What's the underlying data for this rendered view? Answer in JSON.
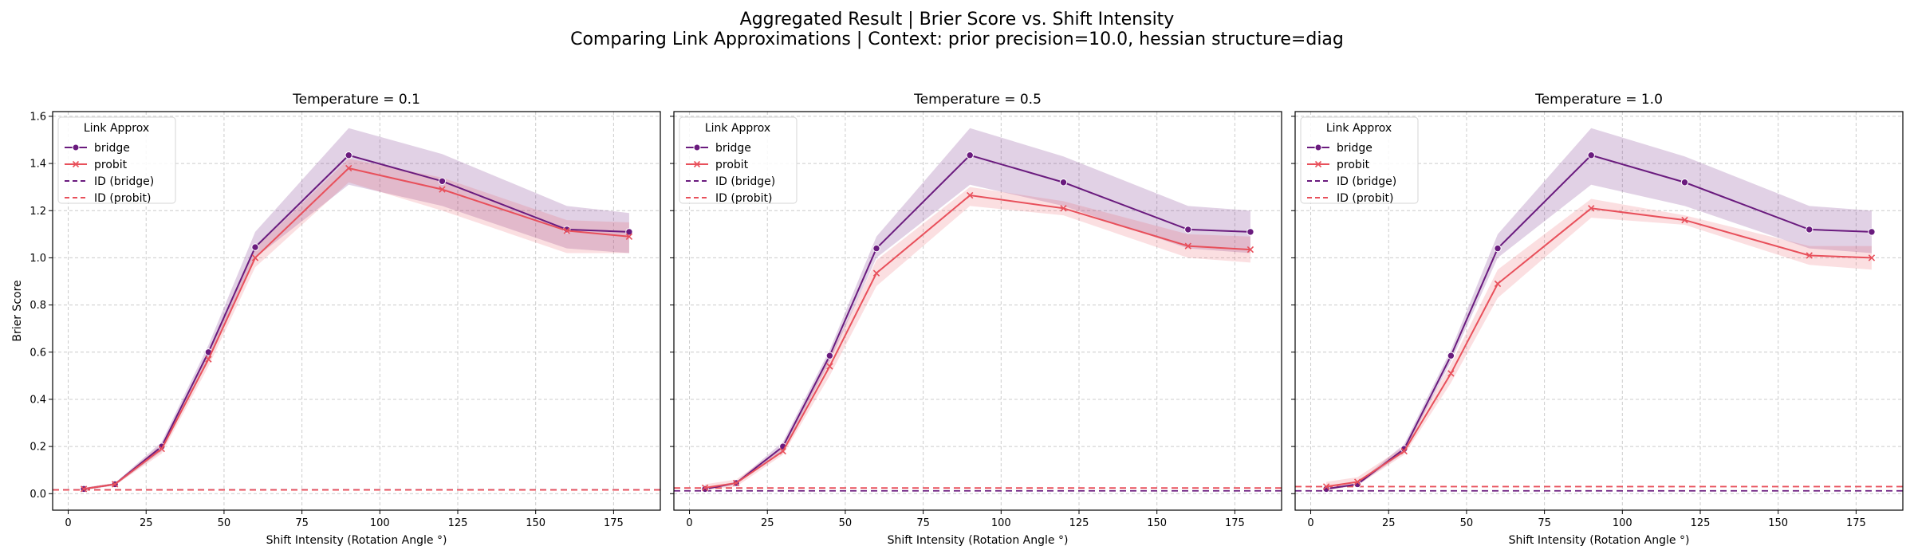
{
  "figure": {
    "title_line1": "Aggregated Result | Brier Score vs. Shift Intensity",
    "title_line2": "Comparing Link Approximations | Context: prior precision=10.0, hessian structure=diag"
  },
  "colors": {
    "bridge": "#6a1b7e",
    "probit": "#e8505b",
    "grid": "#cccccc"
  },
  "chart_data": [
    {
      "type": "line",
      "title": "Temperature = 0.1",
      "xlabel": "Shift Intensity (Rotation Angle °)",
      "ylabel": "Brier Score",
      "xlim": [
        -5,
        190
      ],
      "ylim": [
        -0.07,
        1.62
      ],
      "xticks": [
        0,
        25,
        50,
        75,
        100,
        125,
        150,
        175
      ],
      "yticks": [
        0.0,
        0.2,
        0.4,
        0.6,
        0.8,
        1.0,
        1.2,
        1.4,
        1.6
      ],
      "grid": true,
      "legend": {
        "title": "Link Approx",
        "placement": "top-left",
        "entries": [
          "bridge",
          "probit",
          "ID (bridge)",
          "ID (probit)"
        ]
      },
      "x": [
        5,
        15,
        30,
        45,
        60,
        90,
        120,
        160,
        180
      ],
      "series": [
        {
          "name": "bridge",
          "marker": "circle",
          "values": [
            0.02,
            0.04,
            0.2,
            0.6,
            1.045,
            1.435,
            1.325,
            1.12,
            1.11
          ],
          "ci_low": [
            0.015,
            0.035,
            0.18,
            0.57,
            1.0,
            1.31,
            1.22,
            1.04,
            1.02
          ],
          "ci_high": [
            0.025,
            0.045,
            0.22,
            0.63,
            1.11,
            1.55,
            1.44,
            1.22,
            1.19
          ]
        },
        {
          "name": "probit",
          "marker": "x",
          "values": [
            0.02,
            0.04,
            0.19,
            0.57,
            1.0,
            1.38,
            1.29,
            1.115,
            1.09
          ],
          "ci_low": [
            0.015,
            0.035,
            0.17,
            0.54,
            0.96,
            1.32,
            1.2,
            1.02,
            1.02
          ],
          "ci_high": [
            0.025,
            0.045,
            0.21,
            0.6,
            1.04,
            1.42,
            1.34,
            1.16,
            1.15
          ]
        }
      ],
      "reference_lines": [
        {
          "name": "ID (bridge)",
          "value": 0.016
        },
        {
          "name": "ID (probit)",
          "value": 0.016
        }
      ]
    },
    {
      "type": "line",
      "title": "Temperature = 0.5",
      "xlabel": "Shift Intensity (Rotation Angle °)",
      "ylabel": "",
      "xlim": [
        -5,
        190
      ],
      "ylim": [
        -0.07,
        1.62
      ],
      "xticks": [
        0,
        25,
        50,
        75,
        100,
        125,
        150,
        175
      ],
      "yticks": [
        0.0,
        0.2,
        0.4,
        0.6,
        0.8,
        1.0,
        1.2,
        1.4,
        1.6
      ],
      "grid": true,
      "legend": {
        "title": "Link Approx",
        "placement": "top-left",
        "entries": [
          "bridge",
          "probit",
          "ID (bridge)",
          "ID (probit)"
        ]
      },
      "x": [
        5,
        15,
        30,
        45,
        60,
        90,
        120,
        160,
        180
      ],
      "series": [
        {
          "name": "bridge",
          "marker": "circle",
          "values": [
            0.02,
            0.045,
            0.2,
            0.585,
            1.04,
            1.435,
            1.32,
            1.12,
            1.11
          ],
          "ci_low": [
            0.015,
            0.04,
            0.18,
            0.56,
            1.0,
            1.31,
            1.22,
            1.04,
            1.02
          ],
          "ci_high": [
            0.025,
            0.05,
            0.22,
            0.61,
            1.09,
            1.55,
            1.43,
            1.22,
            1.2
          ]
        },
        {
          "name": "probit",
          "marker": "x",
          "values": [
            0.025,
            0.045,
            0.18,
            0.54,
            0.935,
            1.265,
            1.21,
            1.05,
            1.035
          ],
          "ci_low": [
            0.015,
            0.03,
            0.165,
            0.5,
            0.88,
            1.22,
            1.18,
            1.0,
            0.98
          ],
          "ci_high": [
            0.04,
            0.06,
            0.2,
            0.58,
            0.99,
            1.3,
            1.24,
            1.1,
            1.09
          ]
        }
      ],
      "reference_lines": [
        {
          "name": "ID (bridge)",
          "value": 0.012
        },
        {
          "name": "ID (probit)",
          "value": 0.024
        }
      ]
    },
    {
      "type": "line",
      "title": "Temperature = 1.0",
      "xlabel": "Shift Intensity (Rotation Angle °)",
      "ylabel": "",
      "xlim": [
        -5,
        190
      ],
      "ylim": [
        -0.07,
        1.62
      ],
      "xticks": [
        0,
        25,
        50,
        75,
        100,
        125,
        150,
        175
      ],
      "yticks": [
        0.0,
        0.2,
        0.4,
        0.6,
        0.8,
        1.0,
        1.2,
        1.4,
        1.6
      ],
      "grid": true,
      "legend": {
        "title": "Link Approx",
        "placement": "top-left",
        "entries": [
          "bridge",
          "probit",
          "ID (bridge)",
          "ID (probit)"
        ]
      },
      "x": [
        5,
        15,
        30,
        45,
        60,
        90,
        120,
        160,
        180
      ],
      "series": [
        {
          "name": "bridge",
          "marker": "circle",
          "values": [
            0.02,
            0.04,
            0.19,
            0.585,
            1.04,
            1.435,
            1.32,
            1.12,
            1.11
          ],
          "ci_low": [
            0.015,
            0.035,
            0.175,
            0.56,
            1.0,
            1.31,
            1.22,
            1.04,
            1.02
          ],
          "ci_high": [
            0.025,
            0.045,
            0.21,
            0.61,
            1.1,
            1.55,
            1.43,
            1.22,
            1.2
          ]
        },
        {
          "name": "probit",
          "marker": "x",
          "values": [
            0.03,
            0.05,
            0.18,
            0.51,
            0.89,
            1.21,
            1.16,
            1.01,
            1.0
          ],
          "ci_low": [
            0.015,
            0.035,
            0.165,
            0.47,
            0.83,
            1.17,
            1.14,
            0.97,
            0.95
          ],
          "ci_high": [
            0.05,
            0.07,
            0.2,
            0.55,
            0.95,
            1.25,
            1.18,
            1.05,
            1.05
          ]
        }
      ],
      "reference_lines": [
        {
          "name": "ID (bridge)",
          "value": 0.012
        },
        {
          "name": "ID (probit)",
          "value": 0.03
        }
      ]
    }
  ]
}
